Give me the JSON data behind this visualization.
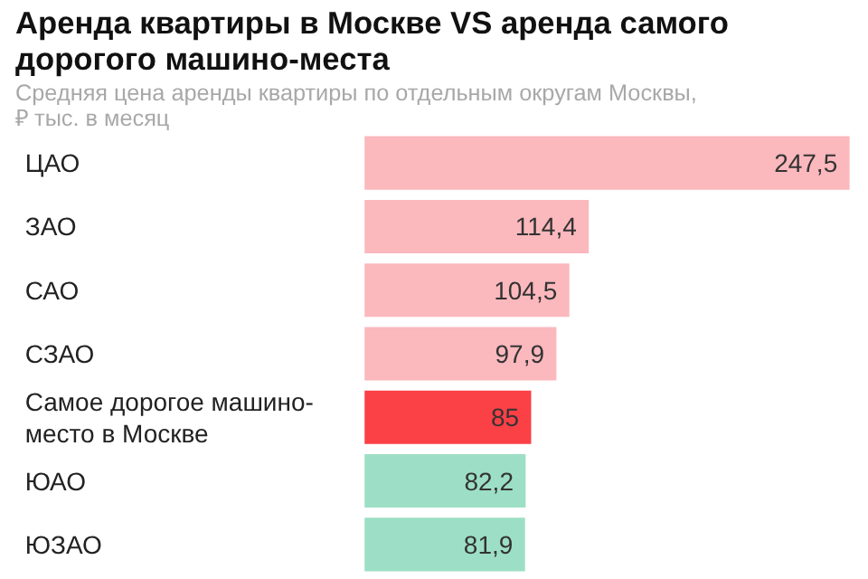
{
  "chart_data": {
    "type": "bar",
    "orientation": "horizontal",
    "title": "Аренда квартиры в Москве VS аренда самого дорогого машино-места",
    "subtitle": "Средняя цена аренды квартиры по отдельным округам Москвы, ₽ тыс. в месяц",
    "categories": [
      "ЦАО",
      "ЗАО",
      "САО",
      "СЗАО",
      "Самое дорогое машино-место в Москве",
      "ЮАО",
      "ЮЗАО"
    ],
    "values": [
      247.5,
      114.4,
      104.5,
      97.9,
      85,
      82.2,
      81.9
    ],
    "value_labels": [
      "247,5",
      "114,4",
      "104,5",
      "97,9",
      "85",
      "82,2",
      "81,9"
    ],
    "colors": [
      "#fbb8bd",
      "#fbb8bd",
      "#fbb8bd",
      "#fbb8bd",
      "#fb4046",
      "#9ddfc6",
      "#9ddfc6"
    ]
  }
}
